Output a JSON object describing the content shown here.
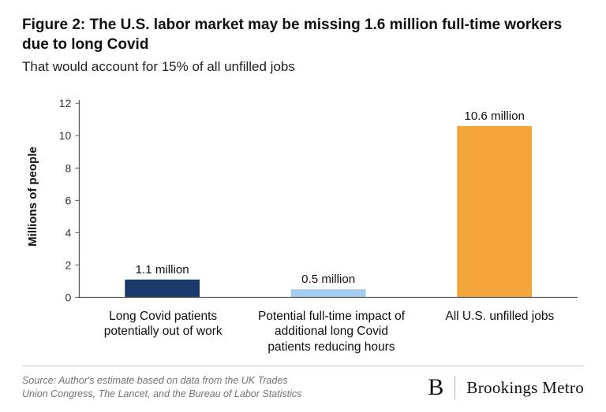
{
  "chart": {
    "type": "bar",
    "title": "Figure 2: The U.S. labor market may be missing 1.6 million full-time workers due to long Covid",
    "subtitle": "That would account for 15% of all unfilled jobs",
    "ylabel": "Millions of people",
    "title_fontsize": 19,
    "title_fontweight": 700,
    "subtitle_fontsize": 17,
    "ylabel_fontsize": 15,
    "ylabel_fontweight": 700,
    "ylim": [
      0,
      12
    ],
    "ytick_step": 2,
    "yticks": [
      "0",
      "2",
      "4",
      "6",
      "8",
      "10",
      "12"
    ],
    "categories": [
      "Long Covid patients potentially out of work",
      "Potential full-time impact of additional long Covid patients reducing hours",
      "All U.S. unfilled jobs"
    ],
    "values": [
      1.1,
      0.5,
      10.6
    ],
    "value_labels": [
      "1.1 million",
      "0.5 million",
      "10.6 million"
    ],
    "bar_colors": [
      "#1b3a6b",
      "#a3cdef",
      "#f3a73b"
    ],
    "bar_width": 0.45,
    "background_color": "#ffffff",
    "axis_color": "#555555",
    "grid": false,
    "category_fontsize": 15.5,
    "barlabel_fontsize": 15
  },
  "footer": {
    "source": "Source: Author's estimate based on data from the UK Trades Union Congress, The Lancet, and the Bureau of Labor Statistics",
    "brand_mark": "B",
    "brand_name": "Brookings Metro",
    "divider_color": "#c8c8c8",
    "source_color": "#737373",
    "source_fontsize": 12.5
  }
}
